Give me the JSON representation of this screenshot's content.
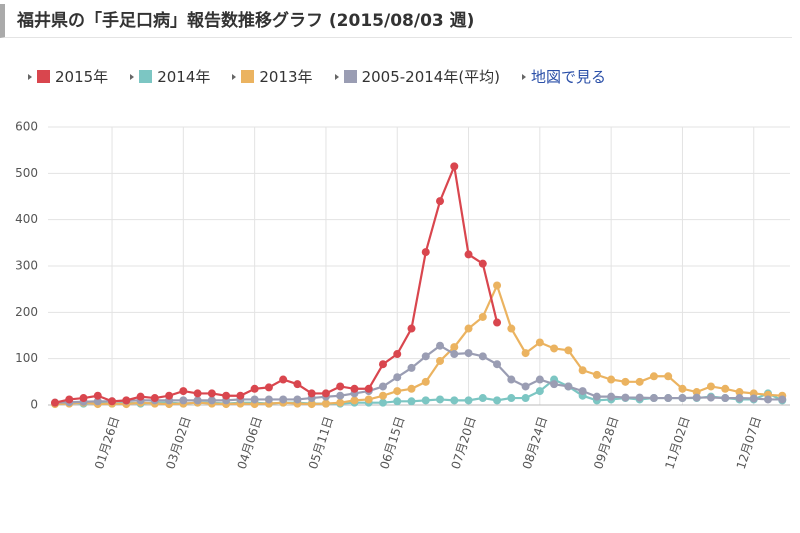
{
  "chart_data": {
    "type": "line",
    "title": "福井県の「手足口病」報告数推移グラフ (2015/08/03 週)",
    "map_link": "地図で見る",
    "categories": [
      null,
      null,
      null,
      null,
      "01月26日",
      null,
      null,
      null,
      null,
      "03月02日",
      null,
      null,
      null,
      null,
      "04月06日",
      null,
      null,
      null,
      null,
      "05月11日",
      null,
      null,
      null,
      null,
      "06月15日",
      null,
      null,
      null,
      null,
      "07月20日",
      null,
      null,
      null,
      null,
      "08月24日",
      null,
      null,
      null,
      null,
      "09月28日",
      null,
      null,
      null,
      null,
      "11月02日",
      null,
      null,
      null,
      null,
      "12月07日",
      null,
      null
    ],
    "series": [
      {
        "name": "2015年",
        "color": "#d9464e",
        "values": [
          5,
          12,
          15,
          20,
          8,
          10,
          18,
          15,
          20,
          30,
          25,
          25,
          20,
          20,
          35,
          38,
          55,
          45,
          25,
          25,
          40,
          35,
          35,
          88,
          110,
          165,
          330,
          440,
          515,
          325,
          305,
          178,
          null,
          null,
          null,
          null,
          null,
          null,
          null,
          null,
          null,
          null,
          null,
          null,
          null,
          null,
          null,
          null,
          null,
          null,
          null,
          null
        ]
      },
      {
        "name": "2014年",
        "color": "#7cc6c3",
        "values": [
          3,
          5,
          3,
          5,
          3,
          5,
          3,
          5,
          5,
          3,
          5,
          5,
          3,
          5,
          5,
          3,
          5,
          5,
          3,
          3,
          3,
          5,
          5,
          5,
          8,
          8,
          10,
          12,
          10,
          10,
          15,
          10,
          15,
          15,
          30,
          55,
          40,
          20,
          10,
          12,
          15,
          12,
          15,
          15,
          15,
          15,
          18,
          15,
          12,
          12,
          25,
          10
        ]
      },
      {
        "name": "2013年",
        "color": "#ebb360",
        "values": [
          2,
          3,
          5,
          2,
          3,
          2,
          5,
          3,
          2,
          3,
          5,
          3,
          2,
          3,
          2,
          3,
          5,
          3,
          2,
          3,
          5,
          10,
          12,
          20,
          30,
          35,
          50,
          95,
          125,
          165,
          190,
          258,
          165,
          112,
          135,
          122,
          118,
          75,
          65,
          55,
          50,
          50,
          62,
          62,
          35,
          28,
          40,
          35,
          28,
          25,
          22,
          20
        ]
      },
      {
        "name": "2005-2014年(平均)",
        "color": "#9a9db3",
        "values": [
          5,
          6,
          7,
          8,
          8,
          9,
          10,
          10,
          10,
          10,
          10,
          10,
          10,
          12,
          12,
          12,
          12,
          12,
          15,
          18,
          20,
          25,
          30,
          40,
          60,
          80,
          105,
          128,
          110,
          112,
          105,
          88,
          55,
          40,
          55,
          45,
          40,
          30,
          18,
          18,
          16,
          16,
          15,
          15,
          15,
          16,
          16,
          15,
          15,
          14,
          12,
          12
        ]
      }
    ],
    "ylim": [
      0,
      600
    ],
    "yticks": [
      0,
      100,
      200,
      300,
      400,
      500,
      600
    ],
    "grid": true
  }
}
